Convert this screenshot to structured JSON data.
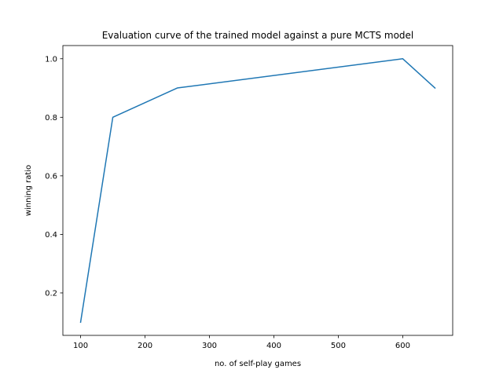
{
  "chart_data": {
    "type": "line",
    "title": "Evaluation curve of the trained model against a pure MCTS model",
    "xlabel": "no. of self-play games",
    "ylabel": "winning ratio",
    "x": [
      100,
      150,
      250,
      600,
      650
    ],
    "series": [
      {
        "values": [
          0.1,
          0.8,
          0.9,
          1.0,
          0.9
        ],
        "color": "#1f77b4"
      }
    ],
    "xlim": [
      72.5,
      677.5
    ],
    "ylim": [
      0.055,
      1.045
    ],
    "xticks": [
      100,
      200,
      300,
      400,
      500,
      600
    ],
    "xtick_labels": [
      "100",
      "200",
      "300",
      "400",
      "500",
      "600"
    ],
    "yticks": [
      0.2,
      0.4,
      0.6,
      0.8,
      1.0
    ],
    "ytick_labels": [
      "0.2",
      "0.4",
      "0.6",
      "0.8",
      "1.0"
    ],
    "grid": false,
    "legend": "none"
  }
}
